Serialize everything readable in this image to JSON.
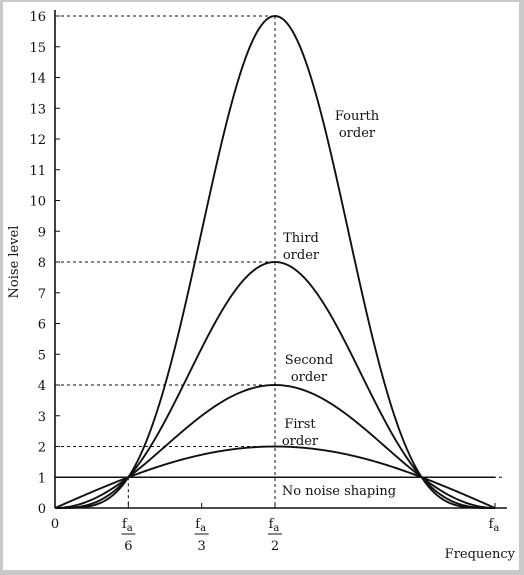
{
  "chart_data": {
    "type": "line",
    "title": "",
    "xlabel": "Frequency",
    "ylabel": "Noise level",
    "xlim": [
      0,
      1
    ],
    "ylim": [
      0,
      16
    ],
    "yticks": [
      0,
      1,
      2,
      3,
      4,
      5,
      6,
      7,
      8,
      9,
      10,
      11,
      12,
      13,
      14,
      15,
      16
    ],
    "xticks": [
      {
        "value": 0,
        "num": "0",
        "den": ""
      },
      {
        "value": 0.1667,
        "num": "f",
        "sub": "a",
        "den": "6"
      },
      {
        "value": 0.3333,
        "num": "f",
        "sub": "a",
        "den": "3"
      },
      {
        "value": 0.5,
        "num": "f",
        "sub": "a",
        "den": "2"
      },
      {
        "value": 1,
        "num": "f",
        "sub": "a",
        "den": ""
      }
    ],
    "series": [
      {
        "name": "No noise shaping",
        "order": 0,
        "peak": 1
      },
      {
        "name": "First order",
        "order": 1,
        "peak": 2
      },
      {
        "name": "Second order",
        "order": 2,
        "peak": 4
      },
      {
        "name": "Third order",
        "order": 3,
        "peak": 8
      },
      {
        "name": "Fourth order",
        "order": 4,
        "peak": 16
      }
    ],
    "curve_labels": [
      {
        "lines": [
          "Fourth",
          "order"
        ]
      },
      {
        "lines": [
          "Third",
          "order"
        ]
      },
      {
        "lines": [
          "Second",
          "order"
        ]
      },
      {
        "lines": [
          "First",
          "order"
        ]
      },
      {
        "lines": [
          "No noise shaping"
        ]
      }
    ],
    "reference_lines_at": [
      16,
      8,
      4,
      2,
      1
    ],
    "grid": false,
    "colors": {
      "line": "#111111",
      "background": "#ffffff",
      "frame": "#c9c9c9"
    }
  }
}
